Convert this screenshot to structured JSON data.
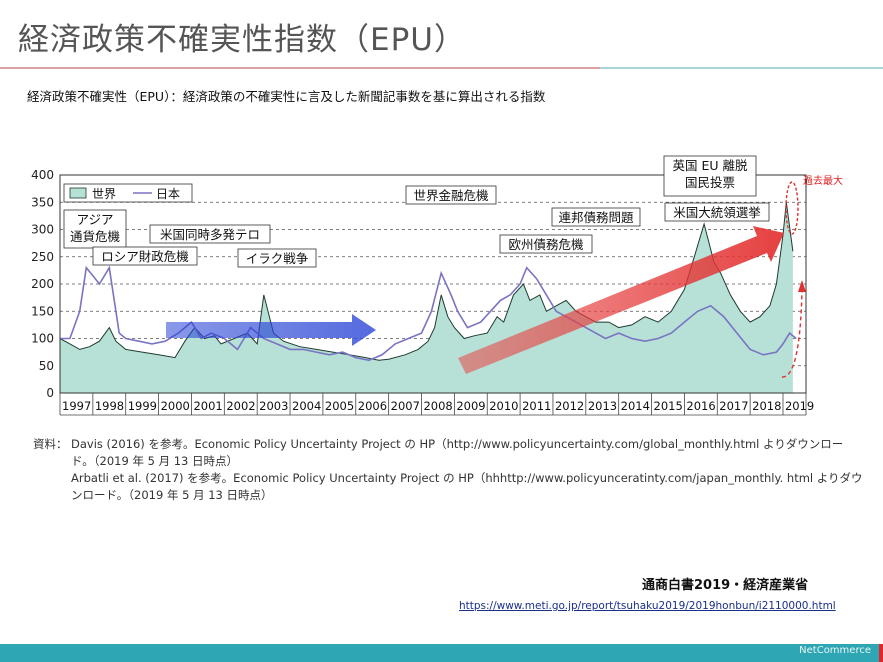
{
  "slide": {
    "title": "経済政策不確実性指数（EPU）",
    "subtitle": "経済政策不確実性（EPU）：経済政策の不確実性に言及した新聞記事数を基に算出される指数",
    "notes": {
      "label": "資料：",
      "line1": "Davis (2016) を参考。Economic Policy Uncertainty Project の HP（http://www.policyuncertainty.com/global_monthly.html よりダウンロード。（2019 年 5 月 13 日時点）",
      "line2": "Arbatli et al. (2017) を参考。Economic Policy Uncertainty Project の HP（hhhttp://www.policyunceratinty.com/japan_monthly. html よりダウンロード。（2019 年 5 月 13 日時点）"
    },
    "publisher": "通商白書2019・経済産業省",
    "url": "https://www.meti.go.jp/report/tsuhaku2019/2019honbun/i2110000.html",
    "footer_logo": "NetCommerce"
  },
  "chart_data": {
    "type": "area",
    "ylim": [
      0,
      400
    ],
    "yticks": [
      0,
      50,
      100,
      150,
      200,
      250,
      300,
      350,
      400
    ],
    "grid": true,
    "legend_position": "top-left",
    "legend": [
      "世界",
      "日本"
    ],
    "x_tick_labels": [
      "1997",
      "1998",
      "1999",
      "2000",
      "2001",
      "2002",
      "2003",
      "2004",
      "2005",
      "2006",
      "2007",
      "2008",
      "2009",
      "2010",
      "2011",
      "2012",
      "2013",
      "2014",
      "2015",
      "2016",
      "2017",
      "2018",
      "2019"
    ],
    "series": [
      {
        "name": "世界",
        "kind": "area",
        "color": "#b7e0d6",
        "x": [
          1997.0,
          1997.3,
          1997.6,
          1997.9,
          1998.2,
          1998.5,
          1998.7,
          1999.0,
          1999.5,
          2000.0,
          2000.5,
          2000.8,
          2001.1,
          2001.4,
          2001.7,
          2001.9,
          2002.3,
          2002.7,
          2003.0,
          2003.2,
          2003.5,
          2003.8,
          2004.3,
          2004.8,
          2005.3,
          2005.8,
          2006.3,
          2006.7,
          2007.0,
          2007.5,
          2007.9,
          2008.2,
          2008.4,
          2008.6,
          2008.8,
          2009.0,
          2009.3,
          2009.6,
          2010.0,
          2010.3,
          2010.5,
          2010.8,
          2011.1,
          2011.3,
          2011.6,
          2011.8,
          2012.1,
          2012.4,
          2012.7,
          2013.0,
          2013.3,
          2013.7,
          2014.0,
          2014.4,
          2014.8,
          2015.2,
          2015.6,
          2016.0,
          2016.3,
          2016.6,
          2016.9,
          2017.1,
          2017.4,
          2017.7,
          2018.0,
          2018.3,
          2018.6,
          2018.8,
          2019.0,
          2019.1,
          2019.3
        ],
        "y": [
          100,
          90,
          80,
          85,
          95,
          120,
          95,
          80,
          75,
          70,
          65,
          95,
          120,
          100,
          105,
          90,
          100,
          110,
          90,
          180,
          110,
          95,
          85,
          80,
          75,
          70,
          65,
          60,
          62,
          70,
          80,
          95,
          120,
          180,
          140,
          120,
          100,
          105,
          110,
          140,
          130,
          180,
          200,
          170,
          180,
          150,
          160,
          170,
          150,
          140,
          130,
          130,
          120,
          125,
          140,
          130,
          150,
          190,
          250,
          310,
          240,
          220,
          180,
          150,
          130,
          140,
          160,
          200,
          290,
          350,
          260
        ]
      },
      {
        "name": "日本",
        "kind": "line",
        "color": "#7a74c2",
        "x": [
          1997.0,
          1997.3,
          1997.6,
          1997.8,
          1998.0,
          1998.2,
          1998.5,
          1998.8,
          1999.0,
          1999.4,
          1999.8,
          2000.2,
          2000.6,
          2001.0,
          2001.3,
          2001.6,
          2002.0,
          2002.4,
          2002.8,
          2003.2,
          2003.6,
          2004.0,
          2004.4,
          2004.8,
          2005.2,
          2005.6,
          2006.0,
          2006.4,
          2006.8,
          2007.2,
          2007.6,
          2008.0,
          2008.3,
          2008.6,
          2008.9,
          2009.1,
          2009.4,
          2009.8,
          2010.1,
          2010.4,
          2010.7,
          2011.0,
          2011.2,
          2011.5,
          2011.8,
          2012.1,
          2012.4,
          2012.7,
          2013.0,
          2013.3,
          2013.6,
          2014.0,
          2014.4,
          2014.8,
          2015.2,
          2015.6,
          2016.0,
          2016.4,
          2016.8,
          2017.2,
          2017.6,
          2018.0,
          2018.4,
          2018.8,
          2019.0,
          2019.2,
          2019.4
        ],
        "y": [
          100,
          100,
          150,
          230,
          215,
          200,
          230,
          110,
          100,
          95,
          90,
          95,
          110,
          130,
          100,
          110,
          100,
          80,
          120,
          100,
          90,
          80,
          80,
          75,
          70,
          75,
          65,
          60,
          70,
          90,
          100,
          110,
          150,
          220,
          180,
          150,
          120,
          130,
          150,
          170,
          180,
          200,
          230,
          210,
          180,
          150,
          140,
          130,
          120,
          110,
          100,
          110,
          100,
          95,
          100,
          110,
          130,
          150,
          160,
          140,
          110,
          80,
          70,
          75,
          90,
          110,
          100
        ]
      }
    ],
    "annotations": [
      "アジア\n通貨危機",
      "ロシア財政危機",
      "米国同時多発テロ",
      "イラク戦争",
      "世界金融危機",
      "欧州債務危機",
      "連邦債務問題",
      "英国 EU 離脱\n国民投票",
      "米国大統領選挙",
      "過去最大"
    ]
  }
}
